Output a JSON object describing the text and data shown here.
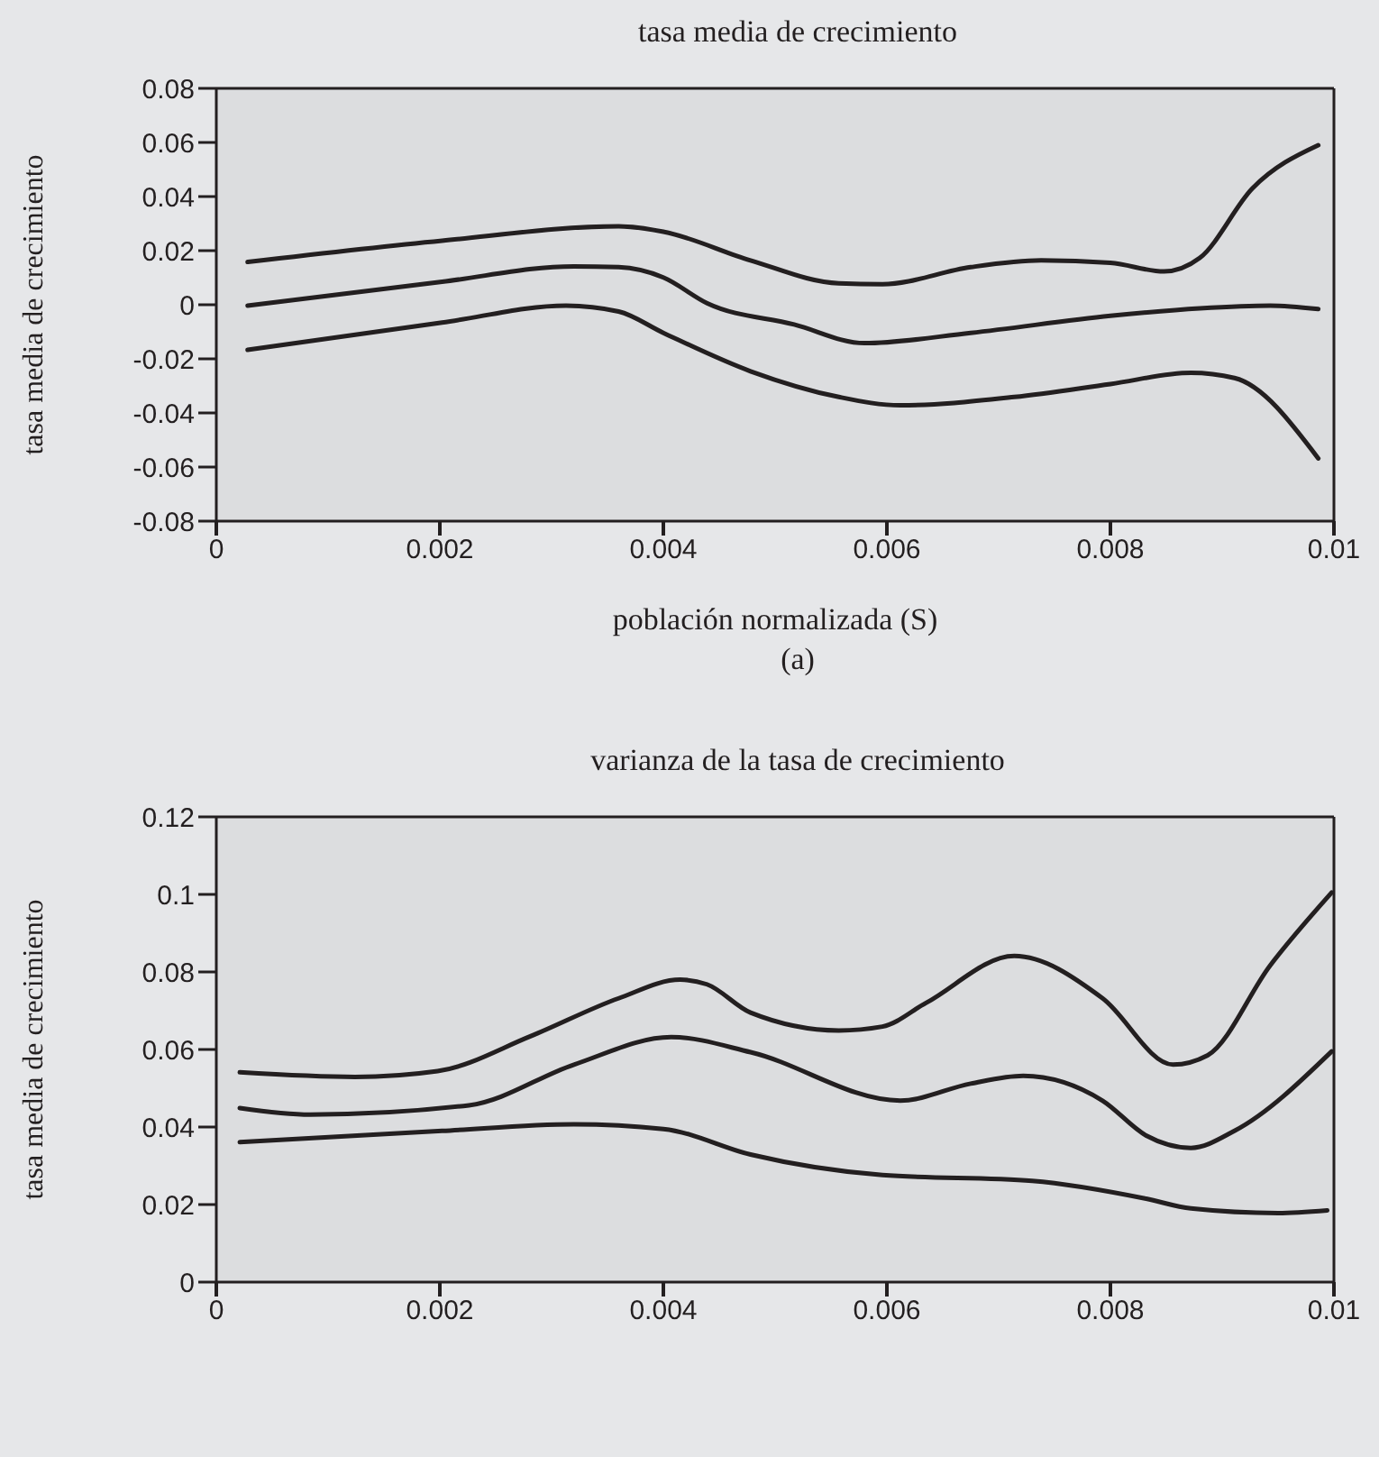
{
  "chart_data": [
    {
      "type": "line",
      "title": "tasa media de crecimiento",
      "xlabel": "población normalizada (S)",
      "ylabel": "tasa media de crecimiento",
      "annotations": [
        "(a)"
      ],
      "xlim": [
        0,
        0.01
      ],
      "xticks": [
        0,
        0.002,
        0.004,
        0.006,
        0.008,
        0.01
      ],
      "ylim": [
        -0.08,
        0.08
      ],
      "yticks": [
        -0.08,
        -0.06,
        -0.04,
        -0.02,
        0,
        0.02,
        0.04,
        0.06,
        0.08
      ],
      "series": [
        {
          "color": "#231f20",
          "x": [
            0.00028,
            0.00202,
            0.0036,
            0.004,
            0.00478,
            0.00557,
            0.00596,
            0.00675,
            0.00738,
            0.008,
            0.00848,
            0.0088,
            0.00927,
            0.00986
          ],
          "values": [
            0.0158,
            0.0237,
            0.029,
            0.027,
            0.0164,
            0.0079,
            0.0076,
            0.0139,
            0.0164,
            0.0155,
            0.0123,
            0.0173,
            0.043,
            0.059
          ]
        },
        {
          "color": "#231f20",
          "x": [
            0.00028,
            0.00202,
            0.0032,
            0.0036,
            0.004,
            0.00439,
            0.00517,
            0.0058,
            0.00675,
            0.008,
            0.0088,
            0.00943,
            0.00986
          ],
          "values": [
            -0.0003,
            0.0085,
            0.0142,
            0.0139,
            0.0101,
            0.0006,
            -0.0073,
            -0.0142,
            -0.0104,
            -0.0041,
            -0.0013,
            -0.0003,
            -0.0016
          ]
        },
        {
          "color": "#231f20",
          "x": [
            0.00028,
            0.00202,
            0.00313,
            0.0036,
            0.004,
            0.00478,
            0.00557,
            0.00612,
            0.00714,
            0.008,
            0.00872,
            0.00911,
            0.00986
          ],
          "values": [
            -0.0167,
            -0.0066,
            -0.0003,
            -0.0025,
            -0.0104,
            -0.0246,
            -0.0341,
            -0.0372,
            -0.0341,
            -0.0293,
            -0.0252,
            -0.0271,
            -0.0568
          ]
        }
      ]
    },
    {
      "type": "line",
      "title": "varianza de la tasa de crecimiento",
      "ylabel": "tasa media de crecimiento",
      "xlim": [
        0,
        0.01
      ],
      "xticks": [
        0,
        0.002,
        0.004,
        0.006,
        0.008,
        0.01
      ],
      "ylim": [
        0,
        0.12
      ],
      "yticks": [
        0,
        0.02,
        0.04,
        0.06,
        0.08,
        0.1,
        0.12
      ],
      "series": [
        {
          "color": "#231f20",
          "x": [
            0.00021,
            0.00124,
            0.00198,
            0.00281,
            0.0036,
            0.00415,
            0.00439,
            0.00478,
            0.00557,
            0.00596,
            0.00635,
            0.00714,
            0.00793,
            0.00856,
            0.00887,
            0.00943,
            0.00998
          ],
          "values": [
            0.0541,
            0.0529,
            0.0544,
            0.0634,
            0.0732,
            0.078,
            0.0768,
            0.0695,
            0.0649,
            0.0659,
            0.072,
            0.0841,
            0.0732,
            0.0561,
            0.0585,
            0.0817,
            0.1005
          ]
        },
        {
          "color": "#231f20",
          "x": [
            0.00021,
            0.00084,
            0.00226,
            0.0032,
            0.00407,
            0.00478,
            0.00612,
            0.00675,
            0.00722,
            0.00793,
            0.00832,
            0.00872,
            0.00911,
            0.00998
          ],
          "values": [
            0.0449,
            0.0432,
            0.0456,
            0.0561,
            0.0632,
            0.0593,
            0.0468,
            0.0512,
            0.0532,
            0.0468,
            0.0378,
            0.0346,
            0.039,
            0.0595
          ]
        },
        {
          "color": "#231f20",
          "x": [
            0.00021,
            0.00202,
            0.0032,
            0.004,
            0.00478,
            0.00596,
            0.0073,
            0.00832,
            0.00872,
            0.0095,
            0.00994
          ],
          "values": [
            0.0361,
            0.039,
            0.0407,
            0.0395,
            0.0329,
            0.0276,
            0.0261,
            0.0215,
            0.019,
            0.0178,
            0.0185
          ]
        }
      ]
    }
  ]
}
